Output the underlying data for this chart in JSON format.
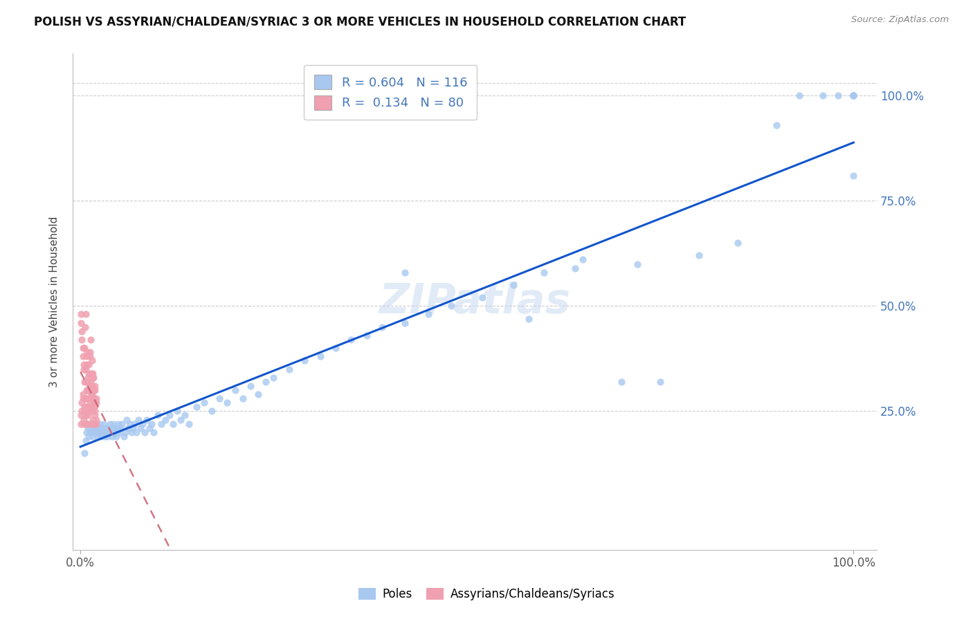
{
  "title": "POLISH VS ASSYRIAN/CHALDEAN/SYRIAC 3 OR MORE VEHICLES IN HOUSEHOLD CORRELATION CHART",
  "source": "Source: ZipAtlas.com",
  "ylabel": "3 or more Vehicles in Household",
  "xlim": [
    -0.01,
    1.03
  ],
  "ylim": [
    -0.08,
    1.1
  ],
  "grid_color": "#cccccc",
  "background_color": "#ffffff",
  "R_blue": 0.604,
  "N_blue": 116,
  "R_pink": 0.134,
  "N_pink": 80,
  "blue_color": "#a8c8f0",
  "pink_color": "#f0a0b0",
  "blue_line_color": "#1155cc",
  "pink_line_color": "#cc6677",
  "legend_blue_label": "Poles",
  "legend_pink_label": "Assyrians/Chaldeans/Syriacs",
  "watermark": "ZIPatlas",
  "blue_x": [
    0.005,
    0.007,
    0.008,
    0.009,
    0.01,
    0.011,
    0.012,
    0.013,
    0.014,
    0.015,
    0.016,
    0.017,
    0.018,
    0.019,
    0.02,
    0.021,
    0.022,
    0.023,
    0.024,
    0.025,
    0.026,
    0.027,
    0.028,
    0.029,
    0.03,
    0.031,
    0.032,
    0.033,
    0.034,
    0.035,
    0.036,
    0.037,
    0.038,
    0.039,
    0.04,
    0.041,
    0.042,
    0.043,
    0.044,
    0.045,
    0.046,
    0.047,
    0.048,
    0.049,
    0.05,
    0.052,
    0.054,
    0.056,
    0.058,
    0.06,
    0.062,
    0.064,
    0.066,
    0.068,
    0.07,
    0.072,
    0.075,
    0.078,
    0.08,
    0.083,
    0.086,
    0.089,
    0.092,
    0.095,
    0.1,
    0.105,
    0.11,
    0.115,
    0.12,
    0.125,
    0.13,
    0.135,
    0.14,
    0.15,
    0.16,
    0.17,
    0.18,
    0.19,
    0.2,
    0.21,
    0.22,
    0.23,
    0.24,
    0.25,
    0.27,
    0.29,
    0.31,
    0.33,
    0.35,
    0.37,
    0.39,
    0.42,
    0.45,
    0.48,
    0.52,
    0.56,
    0.6,
    0.65,
    0.7,
    0.75,
    0.8,
    0.85,
    0.9,
    0.93,
    0.96,
    0.98,
    1.0,
    1.0,
    1.0,
    1.0,
    1.0,
    1.0,
    0.42,
    0.58,
    0.64,
    0.72
  ],
  "blue_y": [
    0.15,
    0.18,
    0.2,
    0.22,
    0.21,
    0.19,
    0.2,
    0.22,
    0.21,
    0.2,
    0.19,
    0.21,
    0.2,
    0.22,
    0.21,
    0.2,
    0.19,
    0.2,
    0.21,
    0.22,
    0.2,
    0.19,
    0.21,
    0.2,
    0.22,
    0.19,
    0.2,
    0.21,
    0.2,
    0.19,
    0.21,
    0.2,
    0.22,
    0.2,
    0.21,
    0.19,
    0.2,
    0.22,
    0.21,
    0.2,
    0.19,
    0.2,
    0.21,
    0.22,
    0.2,
    0.21,
    0.22,
    0.19,
    0.2,
    0.23,
    0.21,
    0.22,
    0.2,
    0.21,
    0.22,
    0.2,
    0.23,
    0.21,
    0.22,
    0.2,
    0.23,
    0.21,
    0.22,
    0.2,
    0.24,
    0.22,
    0.23,
    0.24,
    0.22,
    0.25,
    0.23,
    0.24,
    0.22,
    0.26,
    0.27,
    0.25,
    0.28,
    0.27,
    0.3,
    0.28,
    0.31,
    0.29,
    0.32,
    0.33,
    0.35,
    0.37,
    0.38,
    0.4,
    0.42,
    0.43,
    0.45,
    0.46,
    0.48,
    0.5,
    0.52,
    0.55,
    0.58,
    0.61,
    0.32,
    0.32,
    0.62,
    0.65,
    0.93,
    1.0,
    1.0,
    1.0,
    1.0,
    1.0,
    1.0,
    1.0,
    1.0,
    0.81,
    0.58,
    0.47,
    0.59,
    0.6
  ],
  "pink_x": [
    0.001,
    0.002,
    0.003,
    0.004,
    0.005,
    0.006,
    0.007,
    0.008,
    0.009,
    0.01,
    0.011,
    0.012,
    0.013,
    0.014,
    0.015,
    0.016,
    0.017,
    0.018,
    0.019,
    0.02,
    0.001,
    0.002,
    0.003,
    0.004,
    0.005,
    0.006,
    0.007,
    0.008,
    0.009,
    0.01,
    0.011,
    0.012,
    0.013,
    0.014,
    0.015,
    0.016,
    0.017,
    0.018,
    0.019,
    0.02,
    0.001,
    0.002,
    0.003,
    0.004,
    0.005,
    0.006,
    0.007,
    0.008,
    0.009,
    0.01,
    0.011,
    0.012,
    0.013,
    0.014,
    0.015,
    0.016,
    0.017,
    0.018,
    0.019,
    0.02,
    0.001,
    0.002,
    0.003,
    0.004,
    0.005,
    0.006,
    0.007,
    0.008,
    0.009,
    0.01,
    0.011,
    0.012,
    0.013,
    0.014,
    0.015,
    0.016,
    0.017,
    0.018,
    0.019,
    0.02
  ],
  "pink_y": [
    0.22,
    0.25,
    0.28,
    0.23,
    0.26,
    0.24,
    0.35,
    0.38,
    0.32,
    0.28,
    0.3,
    0.27,
    0.26,
    0.29,
    0.31,
    0.34,
    0.22,
    0.26,
    0.25,
    0.23,
    0.24,
    0.27,
    0.29,
    0.22,
    0.25,
    0.28,
    0.32,
    0.3,
    0.26,
    0.24,
    0.22,
    0.25,
    0.28,
    0.31,
    0.26,
    0.23,
    0.3,
    0.27,
    0.24,
    0.22,
    0.46,
    0.42,
    0.38,
    0.35,
    0.4,
    0.45,
    0.48,
    0.36,
    0.39,
    0.33,
    0.36,
    0.39,
    0.32,
    0.34,
    0.37,
    0.3,
    0.33,
    0.28,
    0.31,
    0.27,
    0.48,
    0.44,
    0.4,
    0.36,
    0.32,
    0.28,
    0.24,
    0.22,
    0.26,
    0.3,
    0.34,
    0.38,
    0.42,
    0.25,
    0.29,
    0.33,
    0.22,
    0.26,
    0.3,
    0.28
  ]
}
